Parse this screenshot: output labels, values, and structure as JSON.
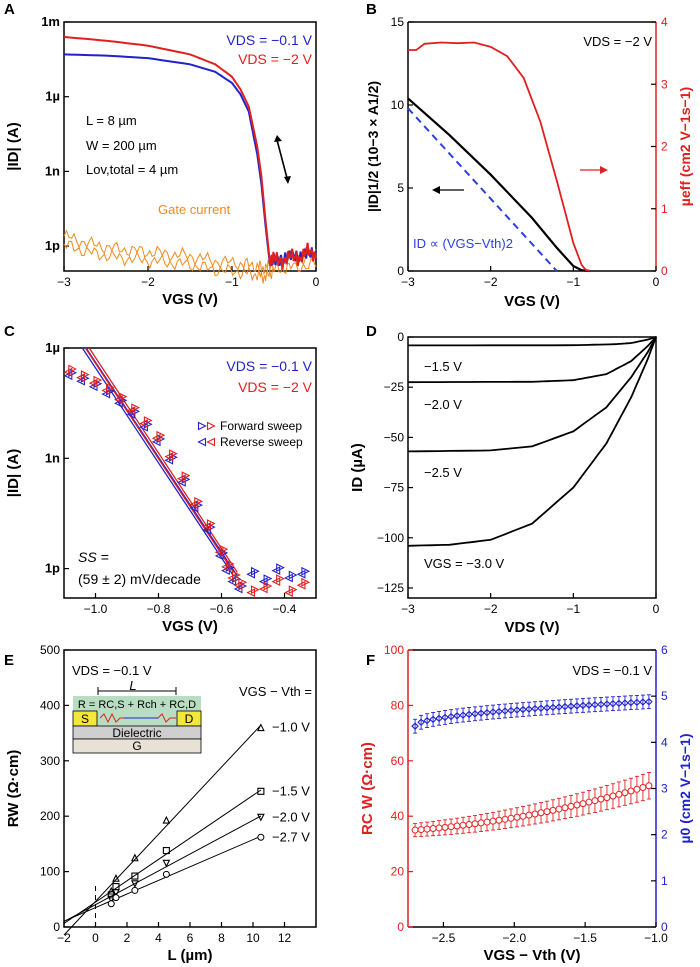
{
  "colors": {
    "blue": "#2222cc",
    "red": "#e02020",
    "orange": "#f08a1c",
    "dash": "#2a3fe0"
  },
  "chart_data": [
    {
      "id": "A",
      "type": "line",
      "title": "",
      "xlabel": "VGS (V)",
      "ylabel": "|ID| (A)",
      "xlim": [
        -3,
        0
      ],
      "ylim_log10": [
        -13,
        -3
      ],
      "x_ticks": [
        "-3",
        "-2",
        "-1",
        "0"
      ],
      "y_ticks": [
        {
          "v": -3,
          "t": "1m"
        },
        {
          "v": -6,
          "t": "1µ"
        },
        {
          "v": -9,
          "t": "1n"
        },
        {
          "v": -12,
          "t": "1p"
        }
      ],
      "legend": [
        "VDS = −0.1 V",
        "VDS = −2 V"
      ],
      "annotations": [
        "L = 8 µm",
        "W = 200 µm",
        "Lov,total = 4 µm",
        "Gate current"
      ],
      "series": [
        {
          "name": "VDS = −0.1 V",
          "color": "blue",
          "x": [
            -3,
            -2.5,
            -2,
            -1.5,
            -1.2,
            -1,
            -0.9,
            -0.8,
            -0.7,
            -0.65,
            -0.6,
            -0.55,
            -0.5,
            -0.4,
            -0.3,
            -0.2,
            -0.1,
            0
          ],
          "log10y": [
            -4.3,
            -4.35,
            -4.45,
            -4.7,
            -5.0,
            -5.45,
            -5.9,
            -6.6,
            -8.3,
            -9.5,
            -11.2,
            -12.7,
            -12.5,
            -12.6,
            -12.3,
            -12.5,
            -12.2,
            -12.4
          ]
        },
        {
          "name": "VDS = −2 V",
          "color": "red",
          "x": [
            -3,
            -2.5,
            -2,
            -1.5,
            -1.2,
            -1,
            -0.9,
            -0.8,
            -0.7,
            -0.65,
            -0.6,
            -0.55,
            -0.5,
            -0.4,
            -0.3,
            -0.2,
            -0.1,
            0
          ],
          "log10y": [
            -3.6,
            -3.75,
            -3.95,
            -4.3,
            -4.7,
            -5.2,
            -5.7,
            -6.4,
            -8.0,
            -9.2,
            -11.0,
            -12.6,
            -12.4,
            -12.7,
            -12.3,
            -12.6,
            -12.1,
            -12.5
          ]
        },
        {
          "name": "Gate current",
          "color": "orange",
          "x": [
            -3,
            -2.7,
            -2.4,
            -2.1,
            -1.8,
            -1.5,
            -1.2,
            -0.9,
            -0.7,
            -0.6,
            -0.5,
            -0.3,
            0
          ],
          "log10y": [
            -11.6,
            -11.9,
            -12.1,
            -12.2,
            -12.3,
            -12.4,
            -12.6,
            -12.7,
            -12.8,
            -12.9,
            -12.6,
            -12.5,
            -12.4
          ]
        }
      ]
    },
    {
      "id": "B",
      "type": "line",
      "title": "",
      "xlabel": "VGS (V)",
      "ylabel": "|ID|1/2 (10−3 × A1/2)",
      "ylabel2": "µeff (cm2 V−1s−1)",
      "xlim": [
        -3,
        0
      ],
      "ylim": [
        0,
        15
      ],
      "ylim2": [
        0,
        4
      ],
      "x_ticks": [
        "-3",
        "-2",
        "-1",
        "0"
      ],
      "y_ticks": [
        "0",
        "5",
        "10",
        "15"
      ],
      "y2_ticks": [
        "0",
        "1",
        "2",
        "3",
        "4"
      ],
      "legend": [
        "VDS = −2 V"
      ],
      "annotations": [
        "ID ∝ (VGS−Vth)2"
      ],
      "series": [
        {
          "name": "sqrt(ID)",
          "color": "black",
          "x": [
            -3,
            -2.5,
            -2,
            -1.5,
            -1.2,
            -1,
            -0.9,
            -0.8
          ],
          "y": [
            10.4,
            8.2,
            5.8,
            3.2,
            1.4,
            0.3,
            0.05,
            0
          ]
        },
        {
          "name": "fit",
          "color": "dash",
          "x": [
            -3,
            -1.2
          ],
          "y": [
            9.8,
            0
          ]
        },
        {
          "name": "µeff",
          "color": "red",
          "x": [
            -3,
            -2.9,
            -2.8,
            -2.6,
            -2.4,
            -2.2,
            -2.0,
            -1.8,
            -1.6,
            -1.4,
            -1.2,
            -1.1,
            -1.0,
            -0.9,
            -0.85,
            -0.8
          ],
          "y": [
            3.55,
            3.55,
            3.65,
            3.67,
            3.66,
            3.67,
            3.6,
            3.45,
            3.1,
            2.4,
            1.45,
            0.95,
            0.45,
            0.1,
            0.02,
            0
          ]
        }
      ]
    },
    {
      "id": "C",
      "type": "scatter",
      "title": "",
      "xlabel": "VGS (V)",
      "ylabel": "|ID| (A)",
      "xlim": [
        -1.1,
        -0.3
      ],
      "ylim_log10": [
        -12.8,
        -6
      ],
      "x_ticks": [
        "-1.0",
        "-0.8",
        "-0.6",
        "-0.4"
      ],
      "y_ticks": [
        {
          "v": -6,
          "t": "1µ"
        },
        {
          "v": -9,
          "t": "1n"
        },
        {
          "v": -12,
          "t": "1p"
        }
      ],
      "legend": [
        "VDS = −0.1 V",
        "VDS = −2 V",
        "Forward sweep",
        "Reverse sweep"
      ],
      "annotations": [
        "SS =",
        "(59 ± 2) mV/decade"
      ],
      "series": [
        {
          "name": "VDS = −0.1 V",
          "color": "blue",
          "x": [
            -1.08,
            -1.04,
            -1.0,
            -0.96,
            -0.92,
            -0.88,
            -0.84,
            -0.8,
            -0.76,
            -0.72,
            -0.68,
            -0.64,
            -0.6,
            -0.58,
            -0.56,
            -0.54,
            -0.5,
            -0.46,
            -0.42,
            -0.38,
            -0.34
          ],
          "log10y": [
            -6.7,
            -6.85,
            -7.0,
            -7.2,
            -7.45,
            -7.75,
            -8.1,
            -8.5,
            -9.0,
            -9.6,
            -10.3,
            -10.9,
            -11.6,
            -12.0,
            -12.3,
            -12.5,
            -12.1,
            -12.3,
            -12.0,
            -12.2,
            -12.1
          ]
        },
        {
          "name": "VDS = −2 V",
          "color": "red",
          "x": [
            -1.08,
            -1.04,
            -1.0,
            -0.96,
            -0.92,
            -0.88,
            -0.84,
            -0.8,
            -0.76,
            -0.72,
            -0.68,
            -0.64,
            -0.6,
            -0.58,
            -0.56,
            -0.54,
            -0.5,
            -0.46,
            -0.42,
            -0.38,
            -0.34
          ],
          "log10y": [
            -6.6,
            -6.75,
            -6.9,
            -7.1,
            -7.35,
            -7.65,
            -8.0,
            -8.4,
            -8.9,
            -9.5,
            -10.2,
            -10.8,
            -11.5,
            -11.9,
            -12.2,
            -12.4,
            -12.6,
            -12.5,
            -12.3,
            -12.6,
            -12.4
          ]
        },
        {
          "name": "fit 1",
          "color": "blue",
          "x": [
            -1.03,
            -0.55
          ],
          "log10y": [
            -6.0,
            -12.2
          ]
        },
        {
          "name": "fit 2",
          "color": "red",
          "x": [
            -1.02,
            -0.55
          ],
          "log10y": [
            -6.0,
            -12.1
          ]
        }
      ]
    },
    {
      "id": "D",
      "type": "line",
      "title": "",
      "xlabel": "VDS (V)",
      "ylabel": "ID (µA)",
      "xlim": [
        -3,
        0
      ],
      "ylim": [
        -130,
        0
      ],
      "x_ticks": [
        "-3",
        "-2",
        "-1",
        "0"
      ],
      "y_ticks": [
        "0",
        "-25",
        "-50",
        "-75",
        "-100",
        "-125"
      ],
      "annotations": [
        "−1.5 V",
        "−2.0 V",
        "−2.5 V",
        "VGS = −3.0 V"
      ],
      "series": [
        {
          "name": "VGS = −1.5 V",
          "x": [
            -3,
            -1,
            -0.5,
            -0.3,
            -0.1,
            0
          ],
          "y": [
            -4.2,
            -4.1,
            -3.6,
            -3.0,
            -1.3,
            0
          ]
        },
        {
          "name": "VGS = −2.0 V",
          "x": [
            -3,
            -1.5,
            -1,
            -0.6,
            -0.3,
            -0.1,
            0
          ],
          "y": [
            -22.5,
            -22.3,
            -21.5,
            -18.5,
            -12,
            -4.5,
            0
          ]
        },
        {
          "name": "VGS = −2.5 V",
          "x": [
            -3,
            -2,
            -1.5,
            -1,
            -0.6,
            -0.3,
            -0.1,
            0
          ],
          "y": [
            -57,
            -56.5,
            -54.5,
            -47,
            -35,
            -20,
            -7.5,
            0
          ]
        },
        {
          "name": "VGS = −3.0 V",
          "x": [
            -3,
            -2.5,
            -2,
            -1.5,
            -1,
            -0.6,
            -0.3,
            -0.1,
            0
          ],
          "y": [
            -104,
            -103.5,
            -101,
            -93,
            -75,
            -53,
            -30,
            -11,
            0
          ]
        }
      ]
    },
    {
      "id": "E",
      "type": "scatter",
      "title": "",
      "xlabel": "L (µm)",
      "ylabel": "RW (Ω·cm)",
      "xlim": [
        -2,
        14
      ],
      "ylim": [
        0,
        500
      ],
      "x_ticks": [
        "-2",
        "0",
        "2",
        "4",
        "6",
        "8",
        "10",
        "12"
      ],
      "y_ticks": [
        "0",
        "100",
        "200",
        "300",
        "400",
        "500"
      ],
      "legend": [
        "VDS = −0.1 V",
        "VGS − Vth ="
      ],
      "annotations": [
        "−1.0 V",
        "−1.5 V",
        "−2.0 V",
        "−2.7 V"
      ],
      "inset": {
        "L": "L",
        "formula": "R = RC,S + Rch + RC,D",
        "S": "S",
        "D": "D",
        "dielectric": "Dielectric",
        "G": "G"
      },
      "series": [
        {
          "name": "−1.0 V",
          "marker": "triangle-up",
          "x": [
            1,
            1.3,
            2.5,
            4.5,
            10.5
          ],
          "y": [
            65,
            88,
            125,
            193,
            360
          ]
        },
        {
          "name": "−1.5 V",
          "marker": "square",
          "x": [
            1,
            1.3,
            2.5,
            4.5,
            10.5
          ],
          "y": [
            58,
            73,
            92,
            138,
            245
          ]
        },
        {
          "name": "−2.0 V",
          "marker": "triangle-down",
          "x": [
            1,
            1.3,
            2.5,
            4.5,
            10.5
          ],
          "y": [
            50,
            62,
            78,
            115,
            198
          ]
        },
        {
          "name": "−2.7 V",
          "marker": "circle",
          "x": [
            1,
            1.3,
            2.5,
            4.5,
            10.5
          ],
          "y": [
            42,
            53,
            66,
            95,
            162
          ]
        }
      ]
    },
    {
      "id": "F",
      "type": "scatter",
      "title": "",
      "xlabel": "VGS − Vth (V)",
      "ylabel": "RC W (Ω·cm)",
      "ylabel2": "µ0 (cm2 V−1s−1)",
      "xlim": [
        -2.75,
        -1.0
      ],
      "ylim": [
        0,
        100
      ],
      "ylim2": [
        0,
        6
      ],
      "x_ticks": [
        "-2.5",
        "-2.0",
        "-1.5",
        "-1.0"
      ],
      "y_ticks": [
        "0",
        "20",
        "40",
        "60",
        "80",
        "100"
      ],
      "y2_ticks": [
        "0",
        "1",
        "2",
        "3",
        "4",
        "5",
        "6"
      ],
      "legend": [
        "VDS = −0.1 V"
      ],
      "series": [
        {
          "name": "RC W",
          "color": "red",
          "x0": -2.7,
          "x1": -1.05,
          "y0": 35,
          "y1": 51,
          "err": 3
        },
        {
          "name": "µ0",
          "color": "blue",
          "x0": -2.7,
          "x1": -1.05,
          "y0": 4.35,
          "y1": 4.88,
          "err": 0.15
        }
      ]
    }
  ]
}
